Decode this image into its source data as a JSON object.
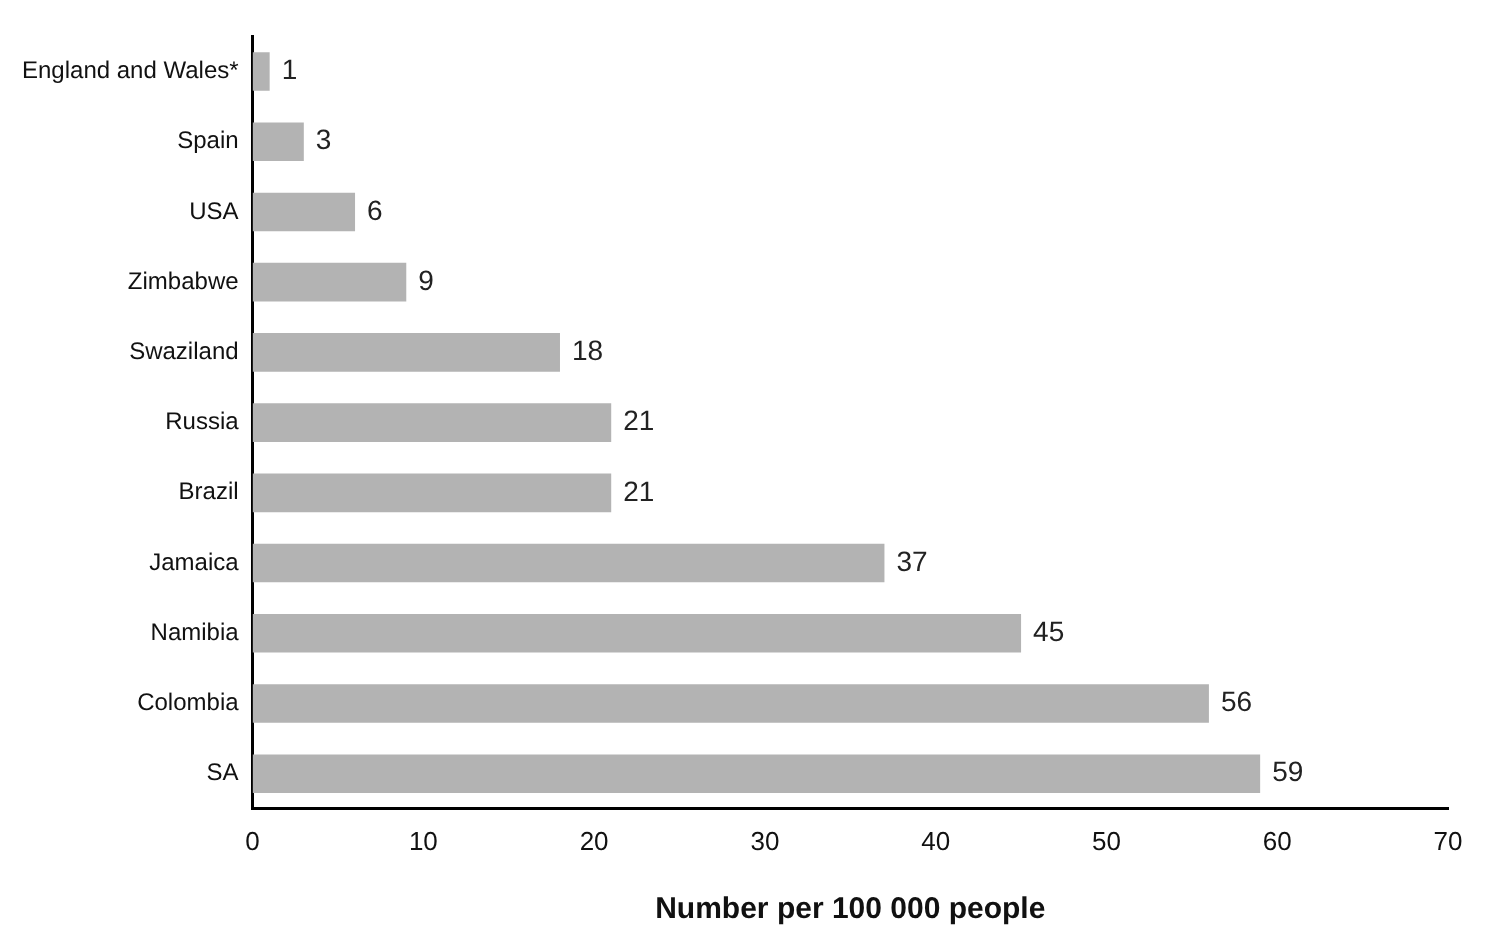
{
  "chart_data": {
    "type": "bar",
    "orientation": "horizontal",
    "xlabel": "Number per 100 000 people",
    "categories": [
      "England and Wales*",
      "Spain",
      "USA",
      "Zimbabwe",
      "Swaziland",
      "Russia",
      "Brazil",
      "Jamaica",
      "Namibia",
      "Colombia",
      "SA"
    ],
    "values": [
      1,
      3,
      6,
      9,
      18,
      21,
      21,
      37,
      45,
      56,
      59
    ],
    "color": "#b3b3b3",
    "xlim": [
      0,
      70
    ],
    "xticks": [
      0,
      10,
      20,
      30,
      40,
      50,
      60,
      70
    ],
    "grid": false,
    "data_labels": true,
    "legend": false
  }
}
